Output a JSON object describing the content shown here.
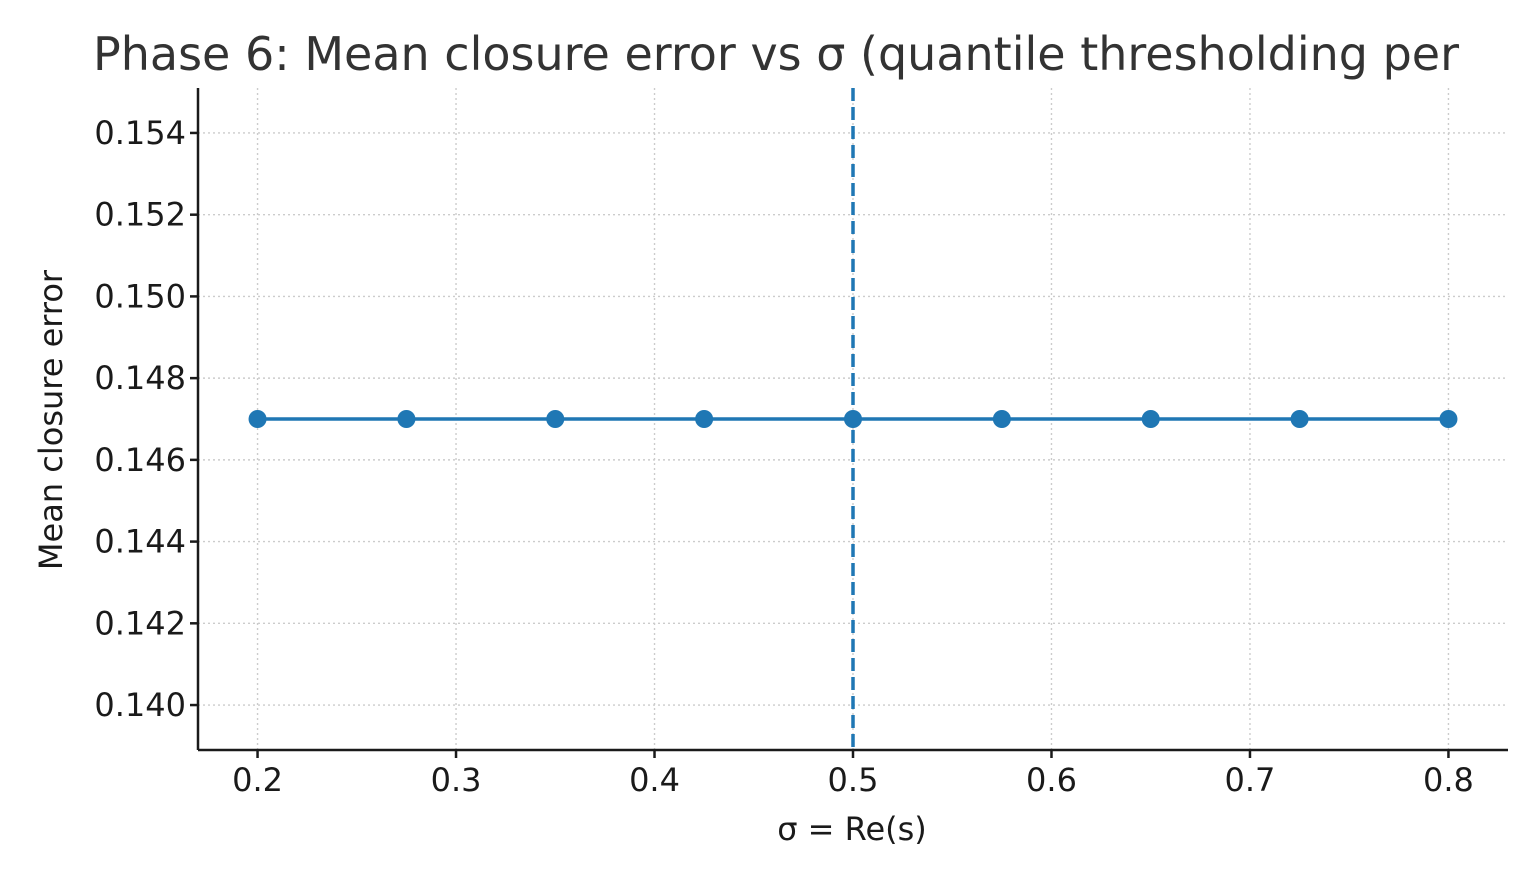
{
  "chart_data": {
    "type": "line",
    "title": "Phase 6: Mean closure error vs σ (quantile thresholding per",
    "xlabel": "σ = Re(s)",
    "ylabel": "Mean closure error",
    "x": [
      0.2,
      0.275,
      0.35,
      0.425,
      0.5,
      0.575,
      0.65,
      0.725,
      0.8
    ],
    "series": [
      {
        "values": [
          0.147,
          0.147,
          0.147,
          0.147,
          0.147,
          0.147,
          0.147,
          0.147,
          0.147
        ]
      }
    ],
    "xlim": [
      0.17,
      0.83
    ],
    "ylim": [
      0.1389,
      0.1551
    ],
    "xticks": [
      0.2,
      0.3,
      0.4,
      0.5,
      0.6,
      0.7,
      0.8
    ],
    "xtick_labels": [
      "0.2",
      "0.3",
      "0.4",
      "0.5",
      "0.6",
      "0.7",
      "0.8"
    ],
    "yticks": [
      0.14,
      0.142,
      0.144,
      0.146,
      0.148,
      0.15,
      0.152,
      0.154
    ],
    "ytick_labels": [
      "0.140",
      "0.142",
      "0.144",
      "0.146",
      "0.148",
      "0.150",
      "0.152",
      "0.154"
    ],
    "reference_line": {
      "orientation": "vertical",
      "x": 0.5,
      "style": "dashed"
    },
    "grid": true,
    "colors": {
      "series": "#1f77b4",
      "reference": "#1f77b4",
      "grid": "#cccccc",
      "axis": "#1a1a1a"
    }
  }
}
